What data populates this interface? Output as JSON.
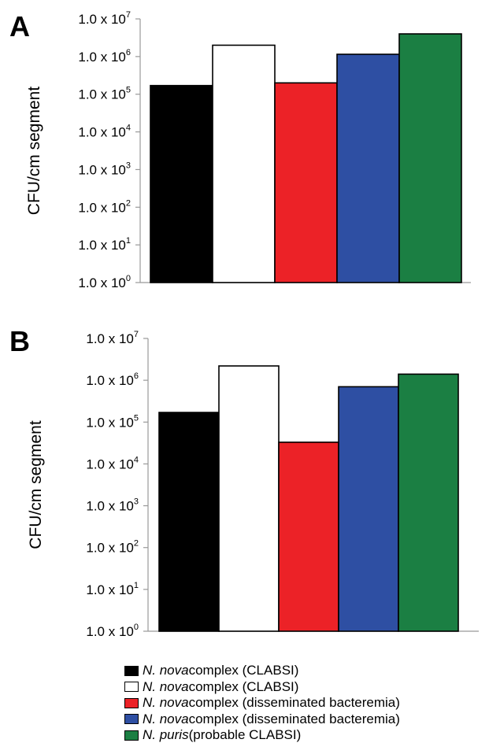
{
  "chart_data": [
    {
      "type": "bar",
      "panel": "A",
      "ylabel": "CFU/cm segment",
      "yscale": "log",
      "ylim": [
        1,
        10000000
      ],
      "yticks": [
        "1.0 x 10^0",
        "1.0 x 10^1",
        "1.0 x 10^2",
        "1.0 x 10^3",
        "1.0 x 10^4",
        "1.0 x 10^5",
        "1.0 x 10^6",
        "1.0 x 10^7"
      ],
      "values": [
        170000,
        2000000,
        200000,
        1150000,
        4000000
      ]
    },
    {
      "type": "bar",
      "panel": "B",
      "ylabel": "CFU/cm segment",
      "yscale": "log",
      "ylim": [
        1,
        10000000
      ],
      "yticks": [
        "1.0 x 10^0",
        "1.0 x 10^1",
        "1.0 x 10^2",
        "1.0 x 10^3",
        "1.0 x 10^4",
        "1.0 x 10^5",
        "1.0 x 10^6",
        "1.0 x 10^7"
      ],
      "values": [
        170000,
        2200000,
        33000,
        700000,
        1400000
      ]
    }
  ],
  "tick_mantissa": "1.0 x 10",
  "legend": [
    {
      "species": "N. nova",
      "rest": " complex (CLABSI)",
      "color": "#000000"
    },
    {
      "species": "N. nova",
      "rest": " complex (CLABSI)",
      "color": "#ffffff"
    },
    {
      "species": "N. nova",
      "rest": " complex (disseminated bacteremia)",
      "color": "#ec2227"
    },
    {
      "species": "N. nova",
      "rest": " complex (disseminated bacteremia)",
      "color": "#2e4fa3"
    },
    {
      "species": "N. puris",
      "rest": " (probable CLABSI)",
      "color": "#1b7f43"
    }
  ]
}
